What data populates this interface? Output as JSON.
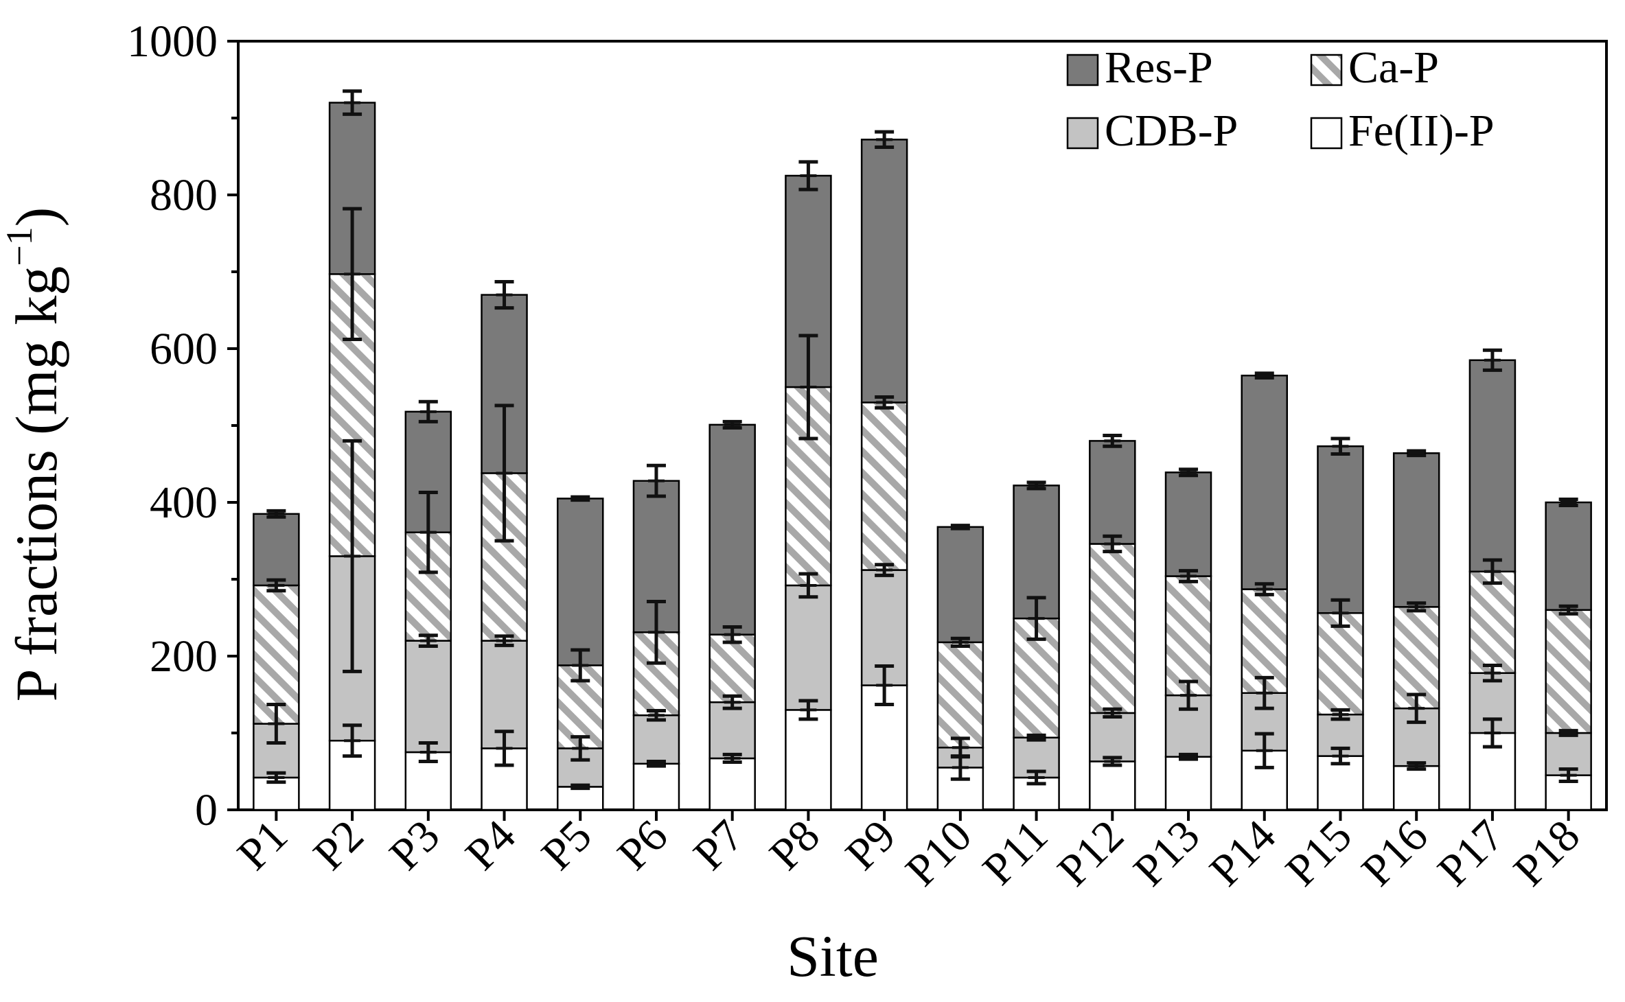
{
  "chart_data": {
    "type": "bar",
    "stacked": true,
    "title": "",
    "xlabel": "Site",
    "ylabel": "P fractions (mg kg",
    "ylabel_sup": "−1",
    "ylabel_close": ")",
    "ylim": [
      0,
      1000
    ],
    "yticks": [
      0,
      200,
      400,
      600,
      800,
      1000
    ],
    "categories": [
      "P1",
      "P2",
      "P3",
      "P4",
      "P5",
      "P6",
      "P7",
      "P8",
      "P9",
      "P10",
      "P11",
      "P12",
      "P13",
      "P14",
      "P15",
      "P16",
      "P17",
      "P18"
    ],
    "legend": {
      "placement": "top-right"
    },
    "series": [
      {
        "name": "Fe(II)-P",
        "style": "white",
        "values": [
          42,
          90,
          75,
          80,
          30,
          60,
          67,
          130,
          162,
          55,
          42,
          63,
          69,
          77,
          70,
          57,
          100,
          45
        ],
        "errors": [
          6,
          20,
          12,
          22,
          2,
          3,
          5,
          12,
          25,
          15,
          8,
          5,
          3,
          22,
          10,
          4,
          18,
          8
        ]
      },
      {
        "name": "CDB-P",
        "style": "lightgray",
        "values": [
          70,
          240,
          145,
          140,
          50,
          63,
          73,
          162,
          150,
          26,
          52,
          63,
          80,
          75,
          54,
          75,
          78,
          55
        ],
        "errors": [
          25,
          150,
          7,
          6,
          15,
          6,
          8,
          15,
          7,
          12,
          3,
          5,
          18,
          20,
          6,
          18,
          10,
          3
        ]
      },
      {
        "name": "Ca-P",
        "style": "hatch",
        "values": [
          180,
          367,
          141,
          218,
          108,
          108,
          88,
          258,
          218,
          137,
          155,
          220,
          155,
          135,
          132,
          132,
          132,
          160
        ],
        "errors": [
          7,
          85,
          52,
          88,
          20,
          40,
          10,
          67,
          7,
          5,
          27,
          10,
          7,
          7,
          17,
          5,
          15,
          5
        ]
      },
      {
        "name": "Res-P",
        "style": "darkgray",
        "values": [
          93,
          223,
          157,
          232,
          217,
          197,
          273,
          275,
          342,
          150,
          173,
          134,
          135,
          278,
          217,
          200,
          275,
          140
        ],
        "errors": [
          4,
          15,
          13,
          17,
          2,
          20,
          4,
          18,
          10,
          2,
          4,
          7,
          4,
          3,
          10,
          3,
          13,
          4
        ]
      }
    ],
    "colors": {
      "Res-P": "#7a7a7a",
      "CDB-P": "#c3c3c3",
      "Fe(II)-P": "#ffffff",
      "Ca-P_stripe": "#a8a8a8"
    }
  }
}
